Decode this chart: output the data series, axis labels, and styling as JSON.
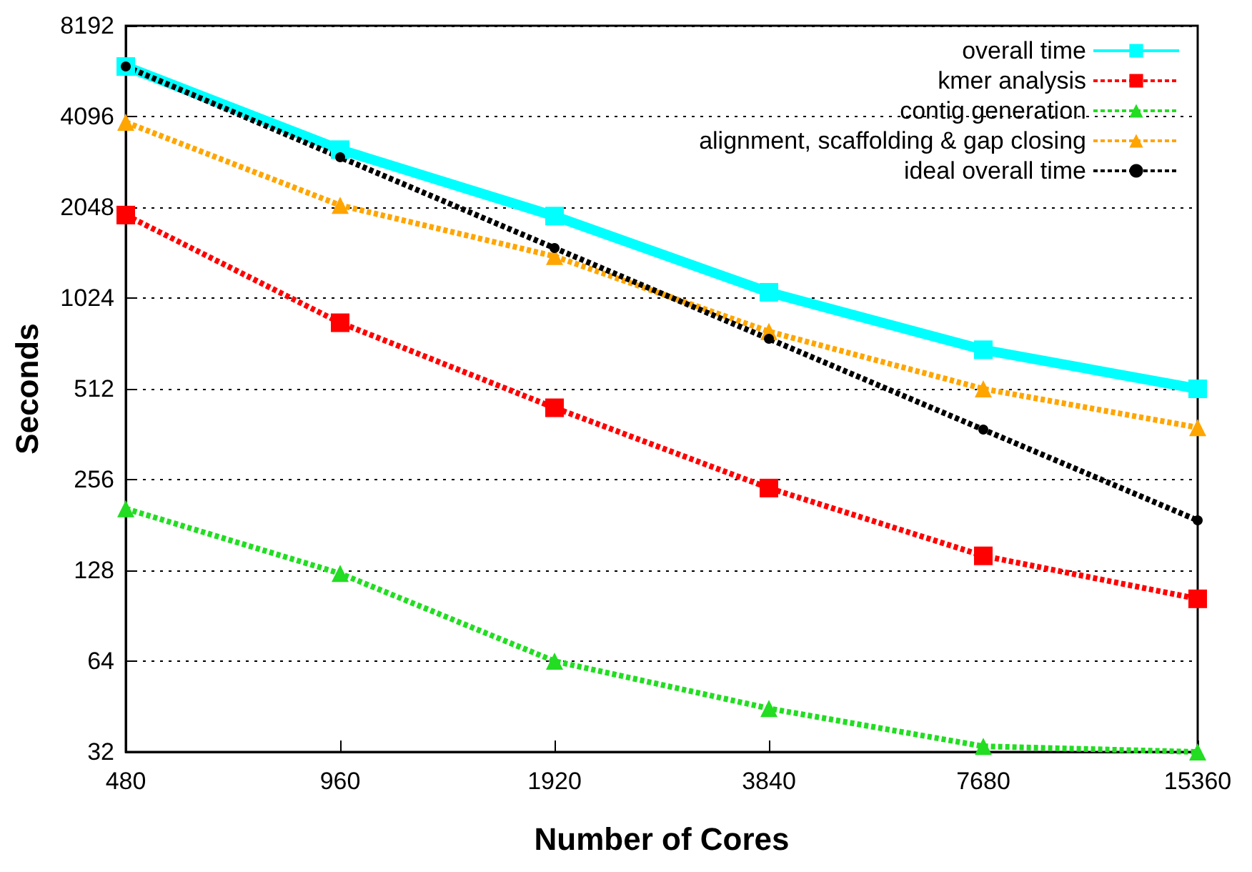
{
  "chart_data": {
    "type": "line",
    "xlabel": "Number of Cores",
    "ylabel": "Seconds",
    "categories": [
      "480",
      "960",
      "1920",
      "3840",
      "7680",
      "15360"
    ],
    "series": [
      {
        "name": "overall time",
        "color": "#00ffff",
        "marker": "square",
        "line_style": "solid",
        "values": [
          6000,
          3180,
          1915,
          1070,
          690,
          512
        ]
      },
      {
        "name": "kmer analysis",
        "color": "#ff0000",
        "marker": "square",
        "line_style": "dotted",
        "values": [
          1930,
          848,
          443,
          240,
          143,
          103
        ]
      },
      {
        "name": "contig generation",
        "color": "#22dd22",
        "marker": "triangle",
        "line_style": "dotted",
        "values": [
          205,
          125,
          64,
          44.6,
          33.4,
          32
        ]
      },
      {
        "name": "alignment, scaffolding & gap closing",
        "color": "#ffa500",
        "marker": "triangle",
        "line_style": "dotted",
        "values": [
          3920,
          2080,
          1408,
          793,
          512,
          381
        ]
      },
      {
        "name": "ideal overall time",
        "color": "#000000",
        "marker": "circle",
        "line_style": "dotted",
        "values": [
          6000,
          3000,
          1500,
          750,
          375,
          187.5
        ]
      }
    ],
    "log": "y",
    "ylim": [
      32,
      8192
    ],
    "yticks": [
      32,
      64,
      128,
      256,
      512,
      1024,
      2048,
      4096,
      8192
    ],
    "grid": "y",
    "legend": "top right"
  }
}
